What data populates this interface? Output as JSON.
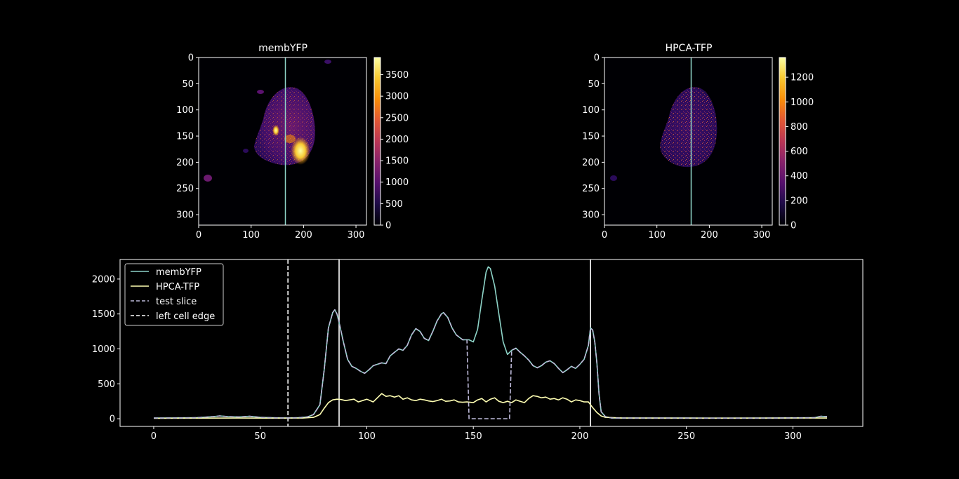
{
  "chart_data": [
    {
      "type": "heatmap",
      "title": "membYFP",
      "xticks": [
        0,
        100,
        200,
        300
      ],
      "yticks": [
        0,
        50,
        100,
        150,
        200,
        250,
        300
      ],
      "xlim": [
        0,
        320
      ],
      "ylim": [
        320,
        0
      ],
      "colormap": "inferno",
      "colorbar_ticks": [
        0,
        500,
        1000,
        1500,
        2000,
        2500,
        3000,
        3500
      ],
      "colorbar_range": [
        0,
        3900
      ],
      "slice_line_x": 165,
      "slice_line_color": "#8dd3c7"
    },
    {
      "type": "heatmap",
      "title": "HPCA-TFP",
      "xticks": [
        0,
        100,
        200,
        300
      ],
      "yticks": [
        0,
        50,
        100,
        150,
        200,
        250,
        300
      ],
      "xlim": [
        0,
        320
      ],
      "ylim": [
        320,
        0
      ],
      "colormap": "inferno",
      "colorbar_ticks": [
        0,
        200,
        400,
        600,
        800,
        1000,
        1200
      ],
      "colorbar_range": [
        0,
        1360
      ],
      "slice_line_x": 165,
      "slice_line_color": "#8dd3c7"
    },
    {
      "type": "line",
      "xticks": [
        0,
        50,
        100,
        150,
        200,
        250,
        300
      ],
      "yticks": [
        0,
        500,
        1000,
        1500,
        2000
      ],
      "xlim": [
        -15.8,
        332.8
      ],
      "ylim": [
        -110,
        2280
      ],
      "legend_position": "top-left",
      "legend": [
        "membYFP",
        "HPCA-TFP",
        "test slice",
        "left cell edge"
      ],
      "series": [
        {
          "name": "membYFP",
          "color": "#8dd3c7",
          "style": "solid",
          "points": [
            [
              0,
              10
            ],
            [
              10,
              12
            ],
            [
              20,
              15
            ],
            [
              28,
              30
            ],
            [
              31,
              40
            ],
            [
              35,
              30
            ],
            [
              40,
              25
            ],
            [
              45,
              35
            ],
            [
              50,
              20
            ],
            [
              55,
              15
            ],
            [
              60,
              12
            ],
            [
              63,
              12
            ],
            [
              68,
              15
            ],
            [
              72,
              25
            ],
            [
              75,
              60
            ],
            [
              78,
              200
            ],
            [
              80,
              700
            ],
            [
              82,
              1300
            ],
            [
              84,
              1520
            ],
            [
              85,
              1560
            ],
            [
              86,
              1500
            ],
            [
              87,
              1380
            ],
            [
              89,
              1100
            ],
            [
              91,
              850
            ],
            [
              93,
              750
            ],
            [
              95,
              720
            ],
            [
              97,
              680
            ],
            [
              99,
              650
            ],
            [
              101,
              700
            ],
            [
              103,
              760
            ],
            [
              105,
              780
            ],
            [
              107,
              800
            ],
            [
              109,
              790
            ],
            [
              111,
              900
            ],
            [
              113,
              950
            ],
            [
              115,
              1000
            ],
            [
              117,
              980
            ],
            [
              119,
              1050
            ],
            [
              121,
              1200
            ],
            [
              123,
              1290
            ],
            [
              125,
              1250
            ],
            [
              127,
              1150
            ],
            [
              129,
              1120
            ],
            [
              131,
              1250
            ],
            [
              133,
              1400
            ],
            [
              135,
              1500
            ],
            [
              136,
              1520
            ],
            [
              138,
              1450
            ],
            [
              140,
              1300
            ],
            [
              142,
              1200
            ],
            [
              145,
              1130
            ],
            [
              148,
              1130
            ],
            [
              150,
              1100
            ],
            [
              152,
              1280
            ],
            [
              154,
              1700
            ],
            [
              156,
              2100
            ],
            [
              157,
              2175
            ],
            [
              158,
              2150
            ],
            [
              160,
              1900
            ],
            [
              162,
              1500
            ],
            [
              164,
              1100
            ],
            [
              166,
              920
            ],
            [
              168,
              980
            ],
            [
              170,
              1010
            ],
            [
              172,
              950
            ],
            [
              174,
              900
            ],
            [
              176,
              840
            ],
            [
              178,
              760
            ],
            [
              180,
              730
            ],
            [
              182,
              760
            ],
            [
              184,
              810
            ],
            [
              186,
              830
            ],
            [
              188,
              790
            ],
            [
              190,
              720
            ],
            [
              192,
              660
            ],
            [
              194,
              700
            ],
            [
              196,
              750
            ],
            [
              198,
              720
            ],
            [
              200,
              780
            ],
            [
              202,
              850
            ],
            [
              204,
              1050
            ],
            [
              205,
              1300
            ],
            [
              206,
              1270
            ],
            [
              207,
              1100
            ],
            [
              208,
              800
            ],
            [
              209,
              350
            ],
            [
              210,
              100
            ],
            [
              212,
              30
            ],
            [
              215,
              10
            ],
            [
              230,
              10
            ],
            [
              250,
              10
            ],
            [
              270,
              8
            ],
            [
              290,
              10
            ],
            [
              310,
              15
            ],
            [
              313,
              35
            ],
            [
              316,
              30
            ]
          ]
        },
        {
          "name": "HPCA-TFP",
          "color": "#ffffb3",
          "style": "solid",
          "points": [
            [
              0,
              5
            ],
            [
              20,
              8
            ],
            [
              40,
              10
            ],
            [
              60,
              8
            ],
            [
              70,
              10
            ],
            [
              75,
              20
            ],
            [
              78,
              60
            ],
            [
              80,
              150
            ],
            [
              82,
              230
            ],
            [
              84,
              270
            ],
            [
              86,
              280
            ],
            [
              88,
              275
            ],
            [
              90,
              260
            ],
            [
              92,
              270
            ],
            [
              94,
              280
            ],
            [
              96,
              240
            ],
            [
              98,
              260
            ],
            [
              100,
              280
            ],
            [
              103,
              240
            ],
            [
              105,
              300
            ],
            [
              107,
              360
            ],
            [
              109,
              320
            ],
            [
              111,
              330
            ],
            [
              113,
              310
            ],
            [
              115,
              330
            ],
            [
              117,
              280
            ],
            [
              119,
              300
            ],
            [
              121,
              270
            ],
            [
              123,
              260
            ],
            [
              125,
              280
            ],
            [
              127,
              270
            ],
            [
              129,
              255
            ],
            [
              131,
              245
            ],
            [
              133,
              260
            ],
            [
              135,
              280
            ],
            [
              137,
              250
            ],
            [
              139,
              255
            ],
            [
              141,
              270
            ],
            [
              143,
              240
            ],
            [
              145,
              235
            ],
            [
              147,
              240
            ],
            [
              150,
              230
            ],
            [
              152,
              270
            ],
            [
              154,
              290
            ],
            [
              156,
              240
            ],
            [
              158,
              280
            ],
            [
              160,
              300
            ],
            [
              162,
              250
            ],
            [
              164,
              230
            ],
            [
              166,
              250
            ],
            [
              168,
              230
            ],
            [
              170,
              270
            ],
            [
              172,
              250
            ],
            [
              174,
              230
            ],
            [
              176,
              290
            ],
            [
              178,
              330
            ],
            [
              180,
              320
            ],
            [
              182,
              300
            ],
            [
              184,
              310
            ],
            [
              186,
              280
            ],
            [
              188,
              290
            ],
            [
              190,
              270
            ],
            [
              192,
              300
            ],
            [
              194,
              280
            ],
            [
              196,
              240
            ],
            [
              198,
              270
            ],
            [
              200,
              260
            ],
            [
              202,
              240
            ],
            [
              204,
              240
            ],
            [
              206,
              160
            ],
            [
              208,
              90
            ],
            [
              210,
              40
            ],
            [
              212,
              20
            ],
            [
              220,
              10
            ],
            [
              260,
              8
            ],
            [
              300,
              10
            ],
            [
              316,
              10
            ]
          ]
        },
        {
          "name": "test slice",
          "color": "#bebada",
          "style": "dashed",
          "points": [
            [
              0,
              10
            ],
            [
              10,
              12
            ],
            [
              20,
              15
            ],
            [
              28,
              30
            ],
            [
              31,
              40
            ],
            [
              35,
              30
            ],
            [
              40,
              25
            ],
            [
              45,
              35
            ],
            [
              50,
              20
            ],
            [
              55,
              15
            ],
            [
              60,
              12
            ],
            [
              63,
              12
            ],
            [
              68,
              15
            ],
            [
              72,
              25
            ],
            [
              75,
              60
            ],
            [
              78,
              200
            ],
            [
              80,
              700
            ],
            [
              82,
              1300
            ],
            [
              84,
              1520
            ],
            [
              85,
              1560
            ],
            [
              86,
              1500
            ],
            [
              87,
              1380
            ],
            [
              89,
              1100
            ],
            [
              91,
              850
            ],
            [
              93,
              750
            ],
            [
              95,
              720
            ],
            [
              97,
              680
            ],
            [
              99,
              650
            ],
            [
              101,
              700
            ],
            [
              103,
              760
            ],
            [
              105,
              780
            ],
            [
              107,
              800
            ],
            [
              109,
              790
            ],
            [
              111,
              900
            ],
            [
              113,
              950
            ],
            [
              115,
              1000
            ],
            [
              117,
              980
            ],
            [
              119,
              1050
            ],
            [
              121,
              1200
            ],
            [
              123,
              1290
            ],
            [
              125,
              1250
            ],
            [
              127,
              1150
            ],
            [
              129,
              1120
            ],
            [
              131,
              1250
            ],
            [
              133,
              1400
            ],
            [
              135,
              1500
            ],
            [
              136,
              1520
            ],
            [
              138,
              1450
            ],
            [
              140,
              1300
            ],
            [
              142,
              1200
            ],
            [
              145,
              1130
            ],
            [
              147,
              1130
            ],
            [
              148,
              0
            ],
            [
              167,
              0
            ],
            [
              168,
              980
            ],
            [
              170,
              1010
            ],
            [
              172,
              950
            ],
            [
              174,
              900
            ],
            [
              176,
              840
            ],
            [
              178,
              760
            ],
            [
              180,
              730
            ],
            [
              182,
              760
            ],
            [
              184,
              810
            ],
            [
              186,
              830
            ],
            [
              188,
              790
            ],
            [
              190,
              720
            ],
            [
              192,
              660
            ],
            [
              194,
              700
            ],
            [
              196,
              750
            ],
            [
              198,
              720
            ],
            [
              200,
              780
            ],
            [
              202,
              850
            ],
            [
              204,
              1050
            ],
            [
              205,
              1300
            ],
            [
              206,
              1270
            ],
            [
              207,
              1100
            ],
            [
              208,
              800
            ],
            [
              209,
              350
            ],
            [
              210,
              100
            ],
            [
              212,
              30
            ],
            [
              215,
              10
            ],
            [
              230,
              10
            ],
            [
              250,
              10
            ],
            [
              270,
              8
            ],
            [
              290,
              10
            ],
            [
              310,
              15
            ],
            [
              313,
              35
            ],
            [
              316,
              30
            ]
          ]
        }
      ],
      "vlines": [
        {
          "x": 63,
          "color": "#ffffff",
          "style": "dashed"
        },
        {
          "x": 87,
          "color": "#ffffff",
          "style": "solid"
        },
        {
          "x": 205,
          "color": "#ffffff",
          "style": "solid"
        }
      ]
    }
  ]
}
